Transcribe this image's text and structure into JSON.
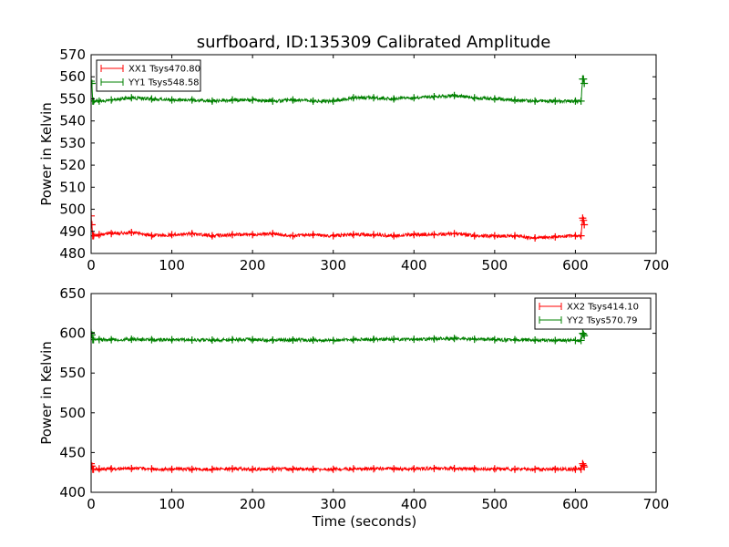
{
  "figure": {
    "title": "surfboard, ID:135309 Calibrated Amplitude"
  },
  "chart_data": [
    {
      "type": "line",
      "title": "surfboard, ID:135309 Calibrated Amplitude",
      "xlabel": "",
      "ylabel": "Power in Kelvin",
      "xlim": [
        0,
        700
      ],
      "ylim": [
        480,
        570
      ],
      "xticks": [
        0,
        100,
        200,
        300,
        400,
        500,
        600,
        700
      ],
      "yticks": [
        480,
        490,
        500,
        510,
        520,
        530,
        540,
        550,
        560,
        570
      ],
      "grid": false,
      "legend_position": "top-left",
      "series": [
        {
          "name": "XX1 Tsys470.80",
          "color": "#ff0000",
          "marker": "+",
          "x": [
            0,
            1,
            2,
            3,
            10,
            25,
            50,
            75,
            100,
            125,
            150,
            175,
            200,
            225,
            250,
            275,
            300,
            325,
            350,
            375,
            400,
            425,
            450,
            475,
            500,
            525,
            550,
            575,
            600,
            607,
            609,
            610,
            611
          ],
          "y": [
            497,
            493,
            488,
            488,
            488.5,
            489,
            489.5,
            488,
            488.5,
            489,
            488,
            488.5,
            488.5,
            489,
            488,
            488.5,
            488,
            488.5,
            488.5,
            488,
            488.5,
            488.5,
            489,
            488,
            488,
            488,
            487,
            487.5,
            488,
            488,
            496,
            495,
            493
          ]
        },
        {
          "name": "YY1 Tsys548.58",
          "color": "#008000",
          "marker": "+",
          "x": [
            0,
            1,
            2,
            3,
            10,
            25,
            50,
            75,
            100,
            125,
            150,
            175,
            200,
            225,
            250,
            275,
            300,
            325,
            350,
            375,
            400,
            425,
            450,
            475,
            500,
            525,
            550,
            575,
            600,
            607,
            609,
            610,
            611
          ],
          "y": [
            558,
            557,
            549,
            549,
            549,
            549.5,
            550.5,
            550,
            549.5,
            549.5,
            549,
            549.5,
            549.5,
            549,
            549.5,
            549,
            549,
            550.5,
            550.5,
            550,
            550.5,
            551,
            551.5,
            550.5,
            550,
            549.5,
            549,
            549,
            549,
            549,
            559,
            559,
            557
          ]
        }
      ]
    },
    {
      "type": "line",
      "title": "",
      "xlabel": "Time (seconds)",
      "ylabel": "Power in Kelvin",
      "xlim": [
        0,
        700
      ],
      "ylim": [
        400,
        650
      ],
      "xticks": [
        0,
        100,
        200,
        300,
        400,
        500,
        600,
        700
      ],
      "yticks": [
        400,
        450,
        500,
        550,
        600,
        650
      ],
      "grid": false,
      "legend_position": "top-right",
      "series": [
        {
          "name": "XX2 Tsys414.10",
          "color": "#ff0000",
          "marker": "+",
          "x": [
            0,
            1,
            2,
            3,
            10,
            25,
            50,
            75,
            100,
            125,
            150,
            175,
            200,
            225,
            250,
            275,
            300,
            325,
            350,
            375,
            400,
            425,
            450,
            475,
            500,
            525,
            550,
            575,
            600,
            607,
            609,
            610,
            611
          ],
          "y": [
            436,
            433,
            429,
            429,
            429.5,
            429.5,
            430,
            429.5,
            429,
            429,
            429,
            429.5,
            429,
            429,
            429,
            429,
            429,
            429.5,
            429.5,
            429.5,
            429.5,
            430,
            430,
            429.5,
            429.5,
            429,
            429,
            429,
            429,
            429,
            436,
            434,
            432
          ]
        },
        {
          "name": "YY2 Tsys570.79",
          "color": "#008000",
          "marker": "+",
          "x": [
            0,
            1,
            2,
            3,
            10,
            25,
            50,
            75,
            100,
            125,
            150,
            175,
            200,
            225,
            250,
            275,
            300,
            325,
            350,
            375,
            400,
            425,
            450,
            475,
            500,
            525,
            550,
            575,
            600,
            607,
            609,
            610,
            611
          ],
          "y": [
            601,
            598,
            592,
            592,
            592,
            592,
            592.5,
            592,
            592,
            591.5,
            591.5,
            592,
            592,
            591.5,
            591.5,
            591.5,
            591,
            592,
            592.5,
            592.5,
            592.5,
            593,
            593.5,
            592.5,
            592,
            592,
            591.5,
            591,
            591,
            591,
            600,
            599,
            597
          ]
        }
      ]
    }
  ]
}
